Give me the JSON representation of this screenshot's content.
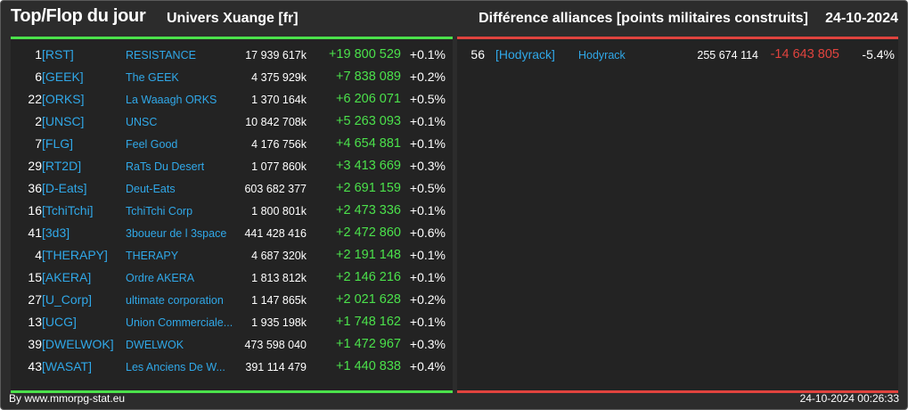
{
  "header": {
    "title": "Top/Flop du jour",
    "universe": "Univers Xuange [fr]",
    "diff_title": "Différence alliances [points militaires construits]",
    "date": "24-10-2024"
  },
  "colors": {
    "top_accent": "#4be14b",
    "flop_accent": "#e0433e",
    "link": "#30a8e8",
    "background": "#2c2c2c"
  },
  "top": [
    {
      "rank": "1",
      "tag": "[RST]",
      "name": "RESISTANCE",
      "points": "17 939 617k",
      "diff": "+19 800 529",
      "pct": "+0.1%"
    },
    {
      "rank": "6",
      "tag": "[GEEK]",
      "name": "The GEEK",
      "points": "4 375 929k",
      "diff": "+7 838 089",
      "pct": "+0.2%"
    },
    {
      "rank": "22",
      "tag": "[ORKS]",
      "name": "La Waaagh ORKS",
      "points": "1 370 164k",
      "diff": "+6 206 071",
      "pct": "+0.5%"
    },
    {
      "rank": "2",
      "tag": "[UNSC]",
      "name": "UNSC",
      "points": "10 842 708k",
      "diff": "+5 263 093",
      "pct": "+0.1%"
    },
    {
      "rank": "7",
      "tag": "[FLG]",
      "name": "Feel Good",
      "points": "4 176 756k",
      "diff": "+4 654 881",
      "pct": "+0.1%"
    },
    {
      "rank": "29",
      "tag": "[RT2D]",
      "name": "RaTs Du Desert",
      "points": "1 077 860k",
      "diff": "+3 413 669",
      "pct": "+0.3%"
    },
    {
      "rank": "36",
      "tag": "[D-Eats]",
      "name": "Deut-Eats",
      "points": "603 682 377",
      "diff": "+2 691 159",
      "pct": "+0.5%"
    },
    {
      "rank": "16",
      "tag": "[TchiTchi]",
      "name": "TchiTchi Corp",
      "points": "1 800 801k",
      "diff": "+2 473 336",
      "pct": "+0.1%"
    },
    {
      "rank": "41",
      "tag": "[3d3]",
      "name": "3boueur de l 3space",
      "points": "441 428 416",
      "diff": "+2 472 860",
      "pct": "+0.6%"
    },
    {
      "rank": "4",
      "tag": "[THERAPY]",
      "name": "THERAPY",
      "points": "4 687 320k",
      "diff": "+2 191 148",
      "pct": "+0.1%"
    },
    {
      "rank": "15",
      "tag": "[AKERA]",
      "name": "Ordre AKERA",
      "points": "1 813 812k",
      "diff": "+2 146 216",
      "pct": "+0.1%"
    },
    {
      "rank": "27",
      "tag": "[U_Corp]",
      "name": "ultimate corporation",
      "points": "1 147 865k",
      "diff": "+2 021 628",
      "pct": "+0.2%"
    },
    {
      "rank": "13",
      "tag": "[UCG]",
      "name": "Union Commerciale...",
      "points": "1 935 198k",
      "diff": "+1 748 162",
      "pct": "+0.1%"
    },
    {
      "rank": "39",
      "tag": "[DWELWOK]",
      "name": "DWELWOK",
      "points": "473 598 040",
      "diff": "+1 472 967",
      "pct": "+0.3%"
    },
    {
      "rank": "43",
      "tag": "[WASAT]",
      "name": "Les Anciens De W...",
      "points": "391 114 479",
      "diff": "+1 440 838",
      "pct": "+0.4%"
    }
  ],
  "flop": [
    {
      "rank": "56",
      "tag": "[Hodyrack]",
      "name": "Hodyrack",
      "points": "255 674 114",
      "diff": "-14 643 805",
      "pct": "-5.4%"
    }
  ],
  "footer": {
    "credit": "By www.mmorpg-stat.eu",
    "timestamp": "24-10-2024 00:26:33"
  }
}
